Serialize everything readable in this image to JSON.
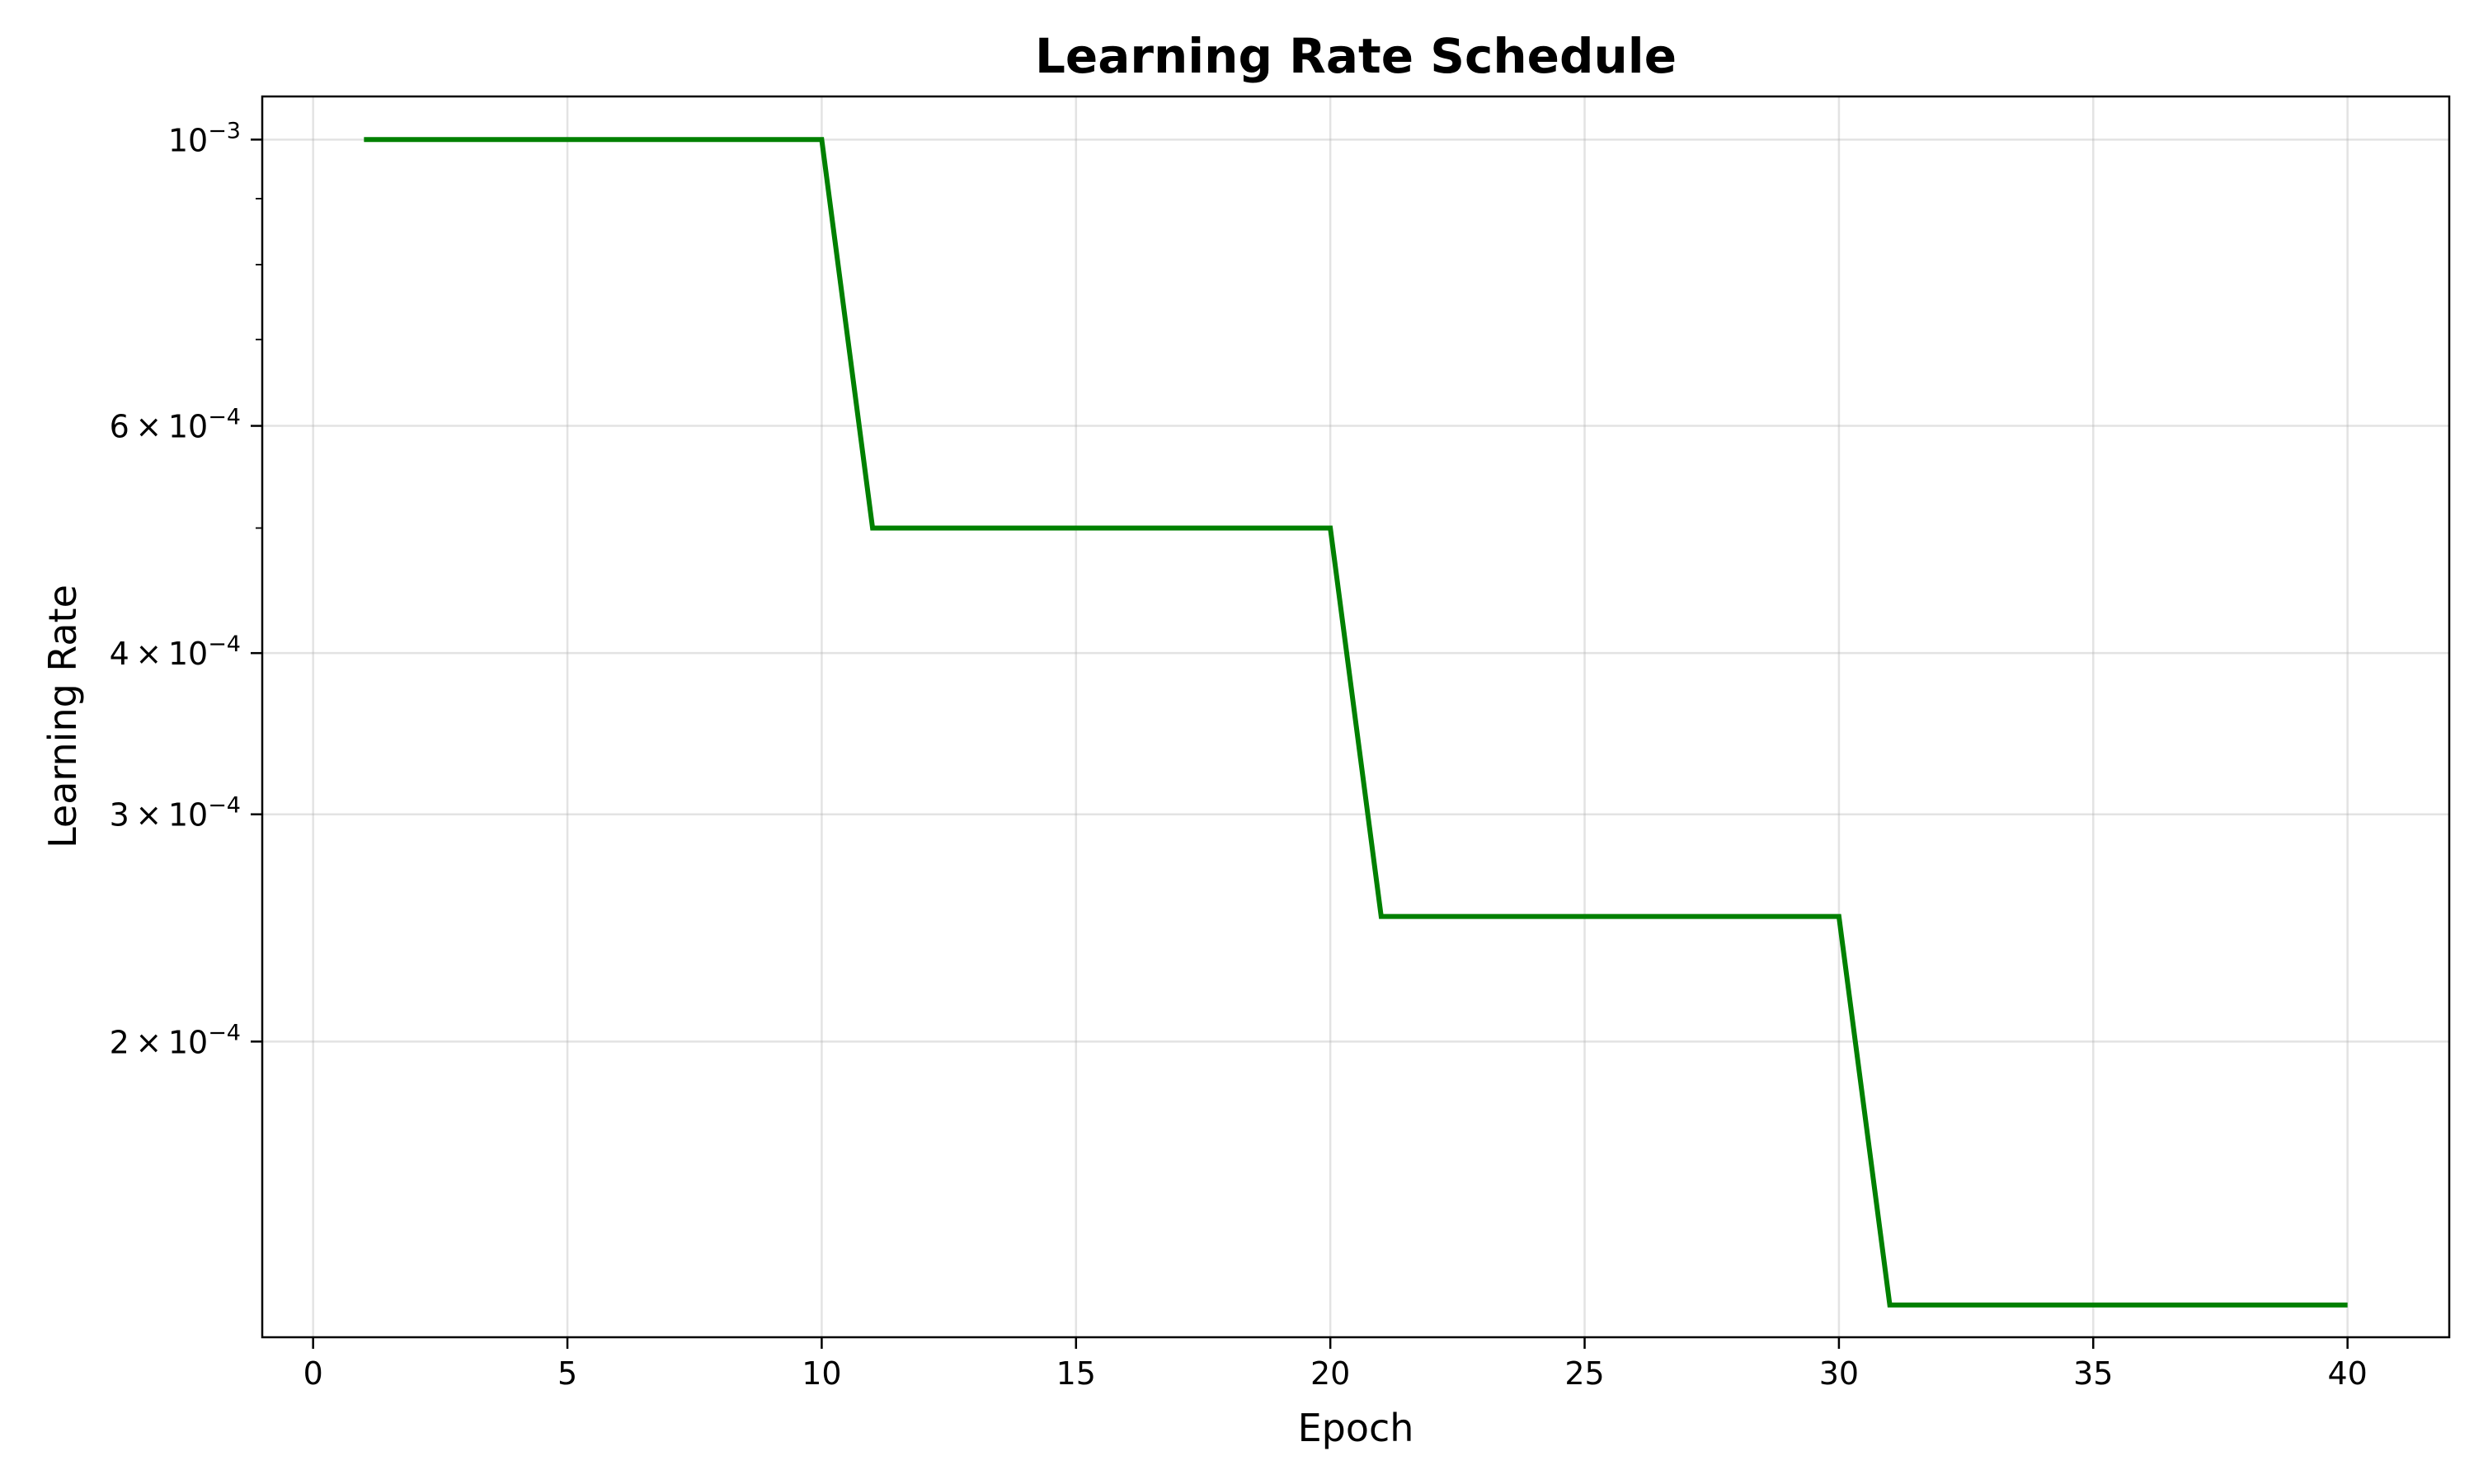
{
  "chart_data": {
    "type": "line",
    "title": "Learning Rate Schedule",
    "xlabel": "Epoch",
    "ylabel": "Learning Rate",
    "xlim": [
      -1,
      42.0
    ],
    "ylim": [
      0.000118,
      0.00108
    ],
    "yscale": "log",
    "grid": true,
    "x_ticks": [
      {
        "value": 0,
        "label": "0"
      },
      {
        "value": 5,
        "label": "5"
      },
      {
        "value": 10,
        "label": "10"
      },
      {
        "value": 15,
        "label": "15"
      },
      {
        "value": 20,
        "label": "20"
      },
      {
        "value": 25,
        "label": "25"
      },
      {
        "value": 30,
        "label": "30"
      },
      {
        "value": 35,
        "label": "35"
      },
      {
        "value": 40,
        "label": "40"
      }
    ],
    "y_ticks": [
      {
        "value": 0.001,
        "base": "10",
        "mantissa": "",
        "exponent": "−3"
      },
      {
        "value": 0.0006,
        "base": "10",
        "mantissa": "6",
        "exponent": "−4"
      },
      {
        "value": 0.0004,
        "base": "10",
        "mantissa": "4",
        "exponent": "−4"
      },
      {
        "value": 0.0003,
        "base": "10",
        "mantissa": "3",
        "exponent": "−4"
      },
      {
        "value": 0.0002,
        "base": "10",
        "mantissa": "2",
        "exponent": "−4"
      }
    ],
    "y_minor_ticks": [
      0.0009,
      0.0008,
      0.0007,
      0.0005
    ],
    "series": [
      {
        "color": "#008000",
        "x": [
          1,
          2,
          3,
          4,
          5,
          6,
          7,
          8,
          9,
          10,
          11,
          12,
          13,
          14,
          15,
          16,
          17,
          18,
          19,
          20,
          21,
          22,
          23,
          24,
          25,
          26,
          27,
          28,
          29,
          30,
          31,
          32,
          33,
          34,
          35,
          36,
          37,
          38,
          39,
          40
        ],
        "y": [
          0.001,
          0.001,
          0.001,
          0.001,
          0.001,
          0.001,
          0.001,
          0.001,
          0.001,
          0.001,
          0.0005,
          0.0005,
          0.0005,
          0.0005,
          0.0005,
          0.0005,
          0.0005,
          0.0005,
          0.0005,
          0.0005,
          0.00025,
          0.00025,
          0.00025,
          0.00025,
          0.00025,
          0.00025,
          0.00025,
          0.00025,
          0.00025,
          0.00025,
          0.000125,
          0.000125,
          0.000125,
          0.000125,
          0.000125,
          0.000125,
          0.000125,
          0.000125,
          0.000125,
          0.000125
        ]
      }
    ]
  }
}
